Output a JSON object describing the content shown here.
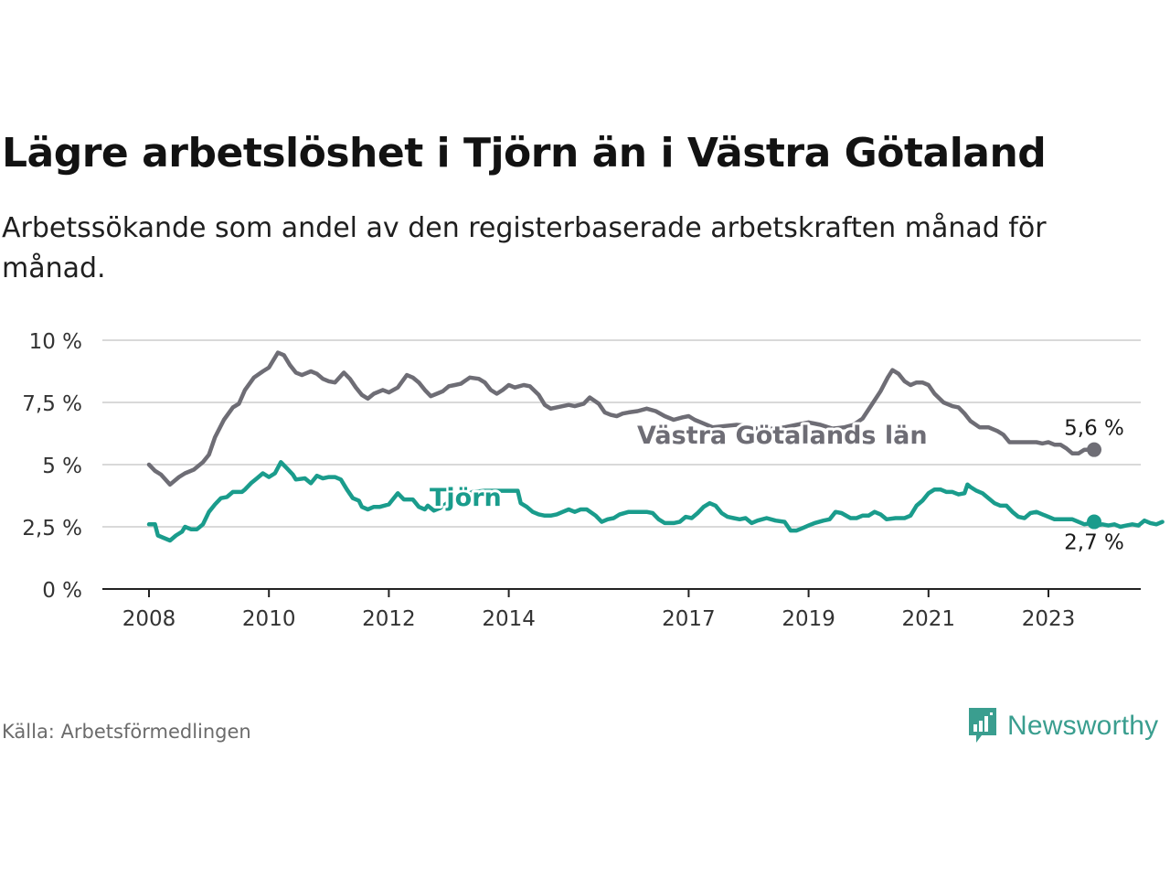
{
  "title": "Lägre arbetslöshet i Tjörn än i Västra Götaland",
  "subtitle": "Arbetssökande som andel av den registerbaserade arbetskraften månad för månad.",
  "source": "Källa: Arbetsförmedlingen",
  "brand": "Newsworthy",
  "colors": {
    "grid": "#d9d9d9",
    "axis": "#222222",
    "vg": "#6e6d75",
    "tjorn": "#1a9c8c",
    "brand": "#3a9e8f"
  },
  "chart_data": {
    "type": "line",
    "title": "Lägre arbetslöshet i Tjörn än i Västra Götaland",
    "xlabel": "",
    "ylabel": "",
    "xlim": [
      2008,
      2024.5
    ],
    "ylim": [
      0,
      10
    ],
    "yticks": [
      0,
      2.5,
      5,
      7.5,
      10
    ],
    "ytick_labels": [
      "0 %",
      "2,5 %",
      "5 %",
      "7,5 %",
      "10 %"
    ],
    "xticks": [
      2008,
      2010,
      2012,
      2014,
      2017,
      2019,
      2021,
      2023
    ],
    "xtick_labels": [
      "2008",
      "2010",
      "2012",
      "2014",
      "2017",
      "2019",
      "2021",
      "2023"
    ],
    "grid": true,
    "series": [
      {
        "name": "Västra Götalands län",
        "end_label": "5,6 %",
        "points": [
          [
            2008.0,
            5.0
          ],
          [
            2008.1,
            4.75
          ],
          [
            2008.2,
            4.6
          ],
          [
            2008.35,
            4.2
          ],
          [
            2008.5,
            4.5
          ],
          [
            2008.6,
            4.65
          ],
          [
            2008.75,
            4.8
          ],
          [
            2008.9,
            5.1
          ],
          [
            2009.0,
            5.4
          ],
          [
            2009.1,
            6.1
          ],
          [
            2009.25,
            6.8
          ],
          [
            2009.4,
            7.3
          ],
          [
            2009.5,
            7.45
          ],
          [
            2009.6,
            8.0
          ],
          [
            2009.75,
            8.5
          ],
          [
            2009.9,
            8.75
          ],
          [
            2010.0,
            8.9
          ],
          [
            2010.15,
            9.5
          ],
          [
            2010.25,
            9.4
          ],
          [
            2010.35,
            9.0
          ],
          [
            2010.45,
            8.7
          ],
          [
            2010.55,
            8.6
          ],
          [
            2010.7,
            8.75
          ],
          [
            2010.8,
            8.65
          ],
          [
            2010.9,
            8.45
          ],
          [
            2011.0,
            8.35
          ],
          [
            2011.1,
            8.3
          ],
          [
            2011.25,
            8.7
          ],
          [
            2011.35,
            8.45
          ],
          [
            2011.45,
            8.1
          ],
          [
            2011.55,
            7.8
          ],
          [
            2011.65,
            7.65
          ],
          [
            2011.75,
            7.85
          ],
          [
            2011.9,
            8.0
          ],
          [
            2012.0,
            7.9
          ],
          [
            2012.15,
            8.1
          ],
          [
            2012.3,
            8.6
          ],
          [
            2012.4,
            8.5
          ],
          [
            2012.5,
            8.3
          ],
          [
            2012.6,
            8.0
          ],
          [
            2012.7,
            7.75
          ],
          [
            2012.8,
            7.85
          ],
          [
            2012.9,
            7.95
          ],
          [
            2013.0,
            8.15
          ],
          [
            2013.1,
            8.2
          ],
          [
            2013.2,
            8.25
          ],
          [
            2013.35,
            8.5
          ],
          [
            2013.5,
            8.45
          ],
          [
            2013.6,
            8.3
          ],
          [
            2013.7,
            8.0
          ],
          [
            2013.8,
            7.85
          ],
          [
            2013.9,
            8.0
          ],
          [
            2014.0,
            8.2
          ],
          [
            2014.1,
            8.1
          ],
          [
            2014.25,
            8.2
          ],
          [
            2014.35,
            8.15
          ],
          [
            2014.5,
            7.8
          ],
          [
            2014.6,
            7.4
          ],
          [
            2014.7,
            7.25
          ],
          [
            2014.8,
            7.3
          ],
          [
            2014.9,
            7.35
          ],
          [
            2015.0,
            7.4
          ],
          [
            2015.1,
            7.35
          ],
          [
            2015.25,
            7.45
          ],
          [
            2015.35,
            7.7
          ],
          [
            2015.5,
            7.45
          ],
          [
            2015.6,
            7.1
          ],
          [
            2015.7,
            7.0
          ],
          [
            2015.8,
            6.95
          ],
          [
            2015.9,
            7.05
          ],
          [
            2016.0,
            7.1
          ],
          [
            2016.15,
            7.15
          ],
          [
            2016.3,
            7.25
          ],
          [
            2016.45,
            7.15
          ],
          [
            2016.6,
            6.95
          ],
          [
            2016.75,
            6.8
          ],
          [
            2016.9,
            6.9
          ],
          [
            2017.0,
            6.95
          ],
          [
            2017.1,
            6.8
          ],
          [
            2017.25,
            6.65
          ],
          [
            2017.4,
            6.5
          ],
          [
            2017.6,
            6.55
          ],
          [
            2017.8,
            6.6
          ],
          [
            2018.0,
            6.55
          ],
          [
            2018.2,
            6.4
          ],
          [
            2018.4,
            6.45
          ],
          [
            2018.6,
            6.5
          ],
          [
            2018.8,
            6.6
          ],
          [
            2019.0,
            6.7
          ],
          [
            2019.2,
            6.6
          ],
          [
            2019.4,
            6.45
          ],
          [
            2019.6,
            6.5
          ],
          [
            2019.75,
            6.6
          ],
          [
            2019.9,
            6.85
          ],
          [
            2020.05,
            7.4
          ],
          [
            2020.2,
            7.95
          ],
          [
            2020.32,
            8.5
          ],
          [
            2020.4,
            8.8
          ],
          [
            2020.5,
            8.65
          ],
          [
            2020.6,
            8.35
          ],
          [
            2020.7,
            8.2
          ],
          [
            2020.8,
            8.3
          ],
          [
            2020.9,
            8.3
          ],
          [
            2021.0,
            8.2
          ],
          [
            2021.1,
            7.85
          ],
          [
            2021.25,
            7.5
          ],
          [
            2021.4,
            7.35
          ],
          [
            2021.5,
            7.3
          ],
          [
            2021.6,
            7.05
          ],
          [
            2021.7,
            6.75
          ],
          [
            2021.85,
            6.5
          ],
          [
            2022.0,
            6.5
          ],
          [
            2022.15,
            6.35
          ],
          [
            2022.25,
            6.2
          ],
          [
            2022.35,
            5.9
          ],
          [
            2022.5,
            5.9
          ],
          [
            2022.65,
            5.9
          ],
          [
            2022.8,
            5.9
          ],
          [
            2022.9,
            5.85
          ],
          [
            2023.0,
            5.9
          ],
          [
            2023.1,
            5.8
          ],
          [
            2023.2,
            5.8
          ],
          [
            2023.3,
            5.65
          ],
          [
            2023.4,
            5.45
          ],
          [
            2023.5,
            5.45
          ],
          [
            2023.6,
            5.6
          ],
          [
            2023.7,
            5.6
          ],
          [
            2023.8,
            5.6
          ]
        ]
      },
      {
        "name": "Tjörn",
        "end_label": "2,7 %",
        "points": [
          [
            2008.0,
            2.6
          ],
          [
            2008.1,
            2.6
          ],
          [
            2008.15,
            2.15
          ],
          [
            2008.35,
            1.95
          ],
          [
            2008.45,
            2.15
          ],
          [
            2008.55,
            2.3
          ],
          [
            2008.6,
            2.5
          ],
          [
            2008.7,
            2.4
          ],
          [
            2008.8,
            2.4
          ],
          [
            2008.9,
            2.6
          ],
          [
            2009.0,
            3.1
          ],
          [
            2009.1,
            3.4
          ],
          [
            2009.2,
            3.65
          ],
          [
            2009.3,
            3.7
          ],
          [
            2009.4,
            3.9
          ],
          [
            2009.55,
            3.9
          ],
          [
            2009.6,
            4.0
          ],
          [
            2009.7,
            4.25
          ],
          [
            2009.8,
            4.45
          ],
          [
            2009.9,
            4.65
          ],
          [
            2010.0,
            4.5
          ],
          [
            2010.1,
            4.65
          ],
          [
            2010.2,
            5.1
          ],
          [
            2010.3,
            4.85
          ],
          [
            2010.4,
            4.6
          ],
          [
            2010.45,
            4.4
          ],
          [
            2010.6,
            4.45
          ],
          [
            2010.7,
            4.25
          ],
          [
            2010.8,
            4.55
          ],
          [
            2010.9,
            4.45
          ],
          [
            2011.0,
            4.5
          ],
          [
            2011.1,
            4.5
          ],
          [
            2011.2,
            4.4
          ],
          [
            2011.3,
            4.0
          ],
          [
            2011.4,
            3.65
          ],
          [
            2011.5,
            3.55
          ],
          [
            2011.55,
            3.3
          ],
          [
            2011.65,
            3.2
          ],
          [
            2011.75,
            3.3
          ],
          [
            2011.85,
            3.3
          ],
          [
            2012.0,
            3.4
          ],
          [
            2012.05,
            3.55
          ],
          [
            2012.15,
            3.85
          ],
          [
            2012.25,
            3.6
          ],
          [
            2012.4,
            3.6
          ],
          [
            2012.5,
            3.3
          ],
          [
            2012.6,
            3.2
          ],
          [
            2012.65,
            3.35
          ],
          [
            2012.75,
            3.15
          ],
          [
            2012.85,
            3.25
          ],
          [
            2013.0,
            3.5
          ],
          [
            2013.1,
            3.6
          ],
          [
            2013.25,
            3.75
          ],
          [
            2013.4,
            3.9
          ],
          [
            2013.6,
            3.95
          ],
          [
            2013.8,
            3.95
          ],
          [
            2014.0,
            3.95
          ],
          [
            2014.15,
            3.95
          ],
          [
            2014.2,
            3.45
          ],
          [
            2014.3,
            3.3
          ],
          [
            2014.4,
            3.1
          ],
          [
            2014.5,
            3.0
          ],
          [
            2014.6,
            2.95
          ],
          [
            2014.7,
            2.95
          ],
          [
            2014.8,
            3.0
          ],
          [
            2014.9,
            3.1
          ],
          [
            2015.0,
            3.2
          ],
          [
            2015.1,
            3.1
          ],
          [
            2015.2,
            3.2
          ],
          [
            2015.3,
            3.2
          ],
          [
            2015.45,
            2.95
          ],
          [
            2015.55,
            2.7
          ],
          [
            2015.65,
            2.8
          ],
          [
            2015.75,
            2.85
          ],
          [
            2015.85,
            3.0
          ],
          [
            2016.0,
            3.1
          ],
          [
            2016.1,
            3.1
          ],
          [
            2016.2,
            3.1
          ],
          [
            2016.3,
            3.1
          ],
          [
            2016.4,
            3.05
          ],
          [
            2016.5,
            2.8
          ],
          [
            2016.6,
            2.65
          ],
          [
            2016.75,
            2.65
          ],
          [
            2016.85,
            2.7
          ],
          [
            2016.95,
            2.9
          ],
          [
            2017.05,
            2.85
          ],
          [
            2017.15,
            3.05
          ],
          [
            2017.25,
            3.3
          ],
          [
            2017.35,
            3.45
          ],
          [
            2017.45,
            3.35
          ],
          [
            2017.55,
            3.05
          ],
          [
            2017.65,
            2.9
          ],
          [
            2017.75,
            2.85
          ],
          [
            2017.85,
            2.8
          ],
          [
            2017.95,
            2.85
          ],
          [
            2018.05,
            2.65
          ],
          [
            2018.15,
            2.75
          ],
          [
            2018.3,
            2.85
          ],
          [
            2018.45,
            2.75
          ],
          [
            2018.6,
            2.7
          ],
          [
            2018.7,
            2.35
          ],
          [
            2018.8,
            2.35
          ],
          [
            2018.9,
            2.45
          ],
          [
            2019.0,
            2.55
          ],
          [
            2019.1,
            2.65
          ],
          [
            2019.25,
            2.75
          ],
          [
            2019.35,
            2.8
          ],
          [
            2019.45,
            3.1
          ],
          [
            2019.55,
            3.05
          ],
          [
            2019.7,
            2.85
          ],
          [
            2019.8,
            2.85
          ],
          [
            2019.9,
            2.95
          ],
          [
            2020.0,
            2.95
          ],
          [
            2020.1,
            3.1
          ],
          [
            2020.2,
            3.0
          ],
          [
            2020.3,
            2.8
          ],
          [
            2020.45,
            2.85
          ],
          [
            2020.6,
            2.85
          ],
          [
            2020.7,
            2.95
          ],
          [
            2020.8,
            3.35
          ],
          [
            2020.9,
            3.55
          ],
          [
            2021.0,
            3.85
          ],
          [
            2021.1,
            4.0
          ],
          [
            2021.2,
            4.0
          ],
          [
            2021.3,
            3.9
          ],
          [
            2021.4,
            3.9
          ],
          [
            2021.5,
            3.8
          ],
          [
            2021.6,
            3.85
          ],
          [
            2021.65,
            4.2
          ],
          [
            2021.7,
            4.1
          ],
          [
            2021.8,
            3.95
          ],
          [
            2021.9,
            3.85
          ],
          [
            2022.0,
            3.65
          ],
          [
            2022.1,
            3.45
          ],
          [
            2022.2,
            3.35
          ],
          [
            2022.3,
            3.35
          ],
          [
            2022.4,
            3.1
          ],
          [
            2022.5,
            2.9
          ],
          [
            2022.6,
            2.85
          ],
          [
            2022.7,
            3.05
          ],
          [
            2022.8,
            3.1
          ],
          [
            2022.9,
            3.0
          ],
          [
            2023.0,
            2.9
          ],
          [
            2023.1,
            2.8
          ],
          [
            2023.25,
            2.8
          ],
          [
            2023.4,
            2.8
          ],
          [
            2023.5,
            2.7
          ],
          [
            2023.6,
            2.6
          ],
          [
            2023.7,
            2.65
          ],
          [
            2023.8,
            2.55
          ],
          [
            2023.9,
            2.6
          ],
          [
            2024.0,
            2.55
          ],
          [
            2024.1,
            2.6
          ],
          [
            2024.2,
            2.5
          ],
          [
            2024.3,
            2.55
          ],
          [
            2024.4,
            2.6
          ],
          [
            2024.5,
            2.55
          ],
          [
            2024.6,
            2.75
          ],
          [
            2024.7,
            2.65
          ],
          [
            2024.8,
            2.6
          ],
          [
            2024.9,
            2.7
          ]
        ]
      }
    ]
  }
}
